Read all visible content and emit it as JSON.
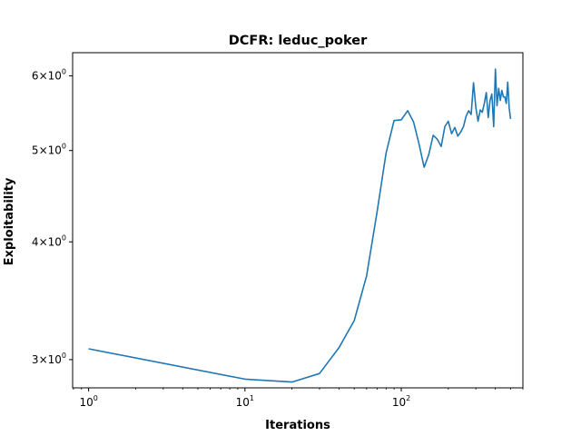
{
  "chart_data": {
    "type": "line",
    "title": "DCFR: leduc_poker",
    "xlabel": "Iterations",
    "ylabel": "Exploitability",
    "xscale": "log",
    "yscale": "log",
    "xlim": [
      0.79,
      600
    ],
    "ylim": [
      2.8,
      6.35
    ],
    "grid": false,
    "x_ticks": [
      {
        "value": 1,
        "base": "10",
        "exp": "0"
      },
      {
        "value": 10,
        "base": "10",
        "exp": "1"
      },
      {
        "value": 100,
        "base": "10",
        "exp": "2"
      }
    ],
    "y_ticks": [
      {
        "value": 3,
        "coef": "3",
        "base": "10",
        "exp": "0"
      },
      {
        "value": 4,
        "coef": "4",
        "base": "10",
        "exp": "0"
      },
      {
        "value": 5,
        "coef": "5",
        "base": "10",
        "exp": "0"
      },
      {
        "value": 6,
        "coef": "6",
        "base": "10",
        "exp": "0"
      }
    ],
    "series": [
      {
        "color": "#1f77b4",
        "x": [
          1,
          10,
          20,
          30,
          40,
          50,
          60,
          70,
          80,
          90,
          100,
          110,
          120,
          130,
          140,
          150,
          160,
          170,
          180,
          190,
          200,
          210,
          220,
          230,
          240,
          250,
          260,
          270,
          280,
          290,
          300,
          310,
          320,
          330,
          340,
          350,
          360,
          370,
          380,
          390,
          400,
          410,
          420,
          430,
          440,
          450,
          460,
          470,
          480,
          490,
          500
        ],
        "y": [
          3.08,
          2.86,
          2.84,
          2.9,
          3.09,
          3.3,
          3.68,
          4.3,
          4.97,
          5.38,
          5.39,
          5.51,
          5.36,
          5.08,
          4.8,
          4.95,
          5.19,
          5.14,
          5.05,
          5.3,
          5.37,
          5.21,
          5.29,
          5.18,
          5.23,
          5.3,
          5.44,
          5.51,
          5.46,
          5.9,
          5.55,
          5.37,
          5.52,
          5.49,
          5.61,
          5.76,
          5.42,
          5.65,
          5.74,
          5.3,
          6.1,
          5.58,
          5.82,
          5.65,
          5.79,
          5.7,
          5.7,
          5.61,
          5.91,
          5.55,
          5.4
        ]
      }
    ]
  }
}
